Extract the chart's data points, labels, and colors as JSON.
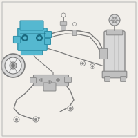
{
  "bg_color": "#f2efea",
  "line_color": "#7a7a7a",
  "pump_fill": "#55b8d0",
  "pump_edge": "#2e8fa8",
  "pump_dark": "#1a6a80",
  "gray_part": "#c0c0c0",
  "gray_edge": "#888888",
  "gray_light": "#d8d8d8",
  "white_bg": "#f8f8f6"
}
